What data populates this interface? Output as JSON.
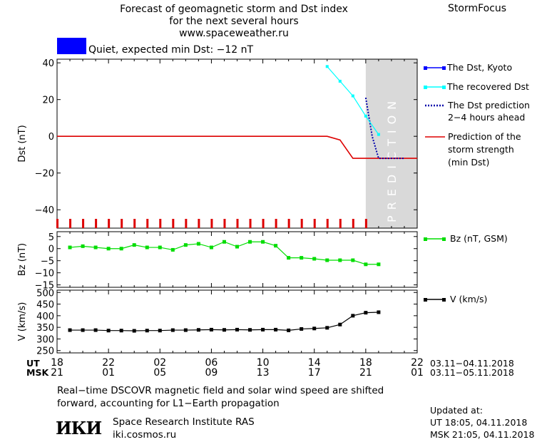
{
  "header": {
    "title_lines": [
      "Forecast of geomagnetic storm and Dst index",
      "for the next several hours",
      "www.spaceweather.ru"
    ],
    "brand": "StormFocus",
    "status_text": "Quiet, expected min Dst: −12 nT",
    "status_color": "#0000ff"
  },
  "legend": {
    "dst_kyoto": "The Dst, Kyoto",
    "recovered_dst": "The recovered Dst",
    "dst_prediction": [
      "The Dst prediction",
      "2−4 hours ahead"
    ],
    "storm_strength": [
      "Prediction of the",
      "storm strength",
      "(min Dst)"
    ],
    "bz": "Bz (nT, GSM)",
    "v": "V (km/s)"
  },
  "time_axis": {
    "ut_label": "UT",
    "msk_label": "MSK",
    "ut_ticks": [
      "18",
      "22",
      "02",
      "06",
      "10",
      "14",
      "18",
      "22"
    ],
    "msk_ticks": [
      "21",
      "01",
      "05",
      "09",
      "13",
      "17",
      "21",
      "01"
    ],
    "ut_range": "03.11−04.11.2018",
    "msk_range": "03.11−05.11.2018"
  },
  "footer": {
    "note_lines": [
      "Real−time DSCOVR magnetic field and solar wind speed are shifted",
      "forward, accounting for L1−Earth propagation"
    ],
    "logo": "ИКИ",
    "institute": "Space Research Institute RAS",
    "site": "iki.cosmos.ru",
    "updated_label": "Updated at:",
    "updated_ut": "UT   18:05, 04.11.2018",
    "updated_msk": "MSK 21:05, 04.11.2018"
  },
  "colors": {
    "kyoto": "#0000ff",
    "recovered": "#00ffff",
    "prediction": "#0000aa",
    "storm": "#dd0000",
    "bz": "#00dd00",
    "v": "#000000",
    "prediction_zone": "#d9d9d9"
  },
  "chart_data": [
    {
      "type": "line",
      "title": "",
      "xlabel": "",
      "ylabel": "Dst (nT)",
      "x_unit": "hours since 18 UT, 03.11.2018",
      "xlim": [
        0,
        28
      ],
      "ylim": [
        -50,
        42
      ],
      "yticks": [
        40,
        20,
        0,
        -20,
        -40
      ],
      "prediction_zone": {
        "from": 24,
        "to": 28,
        "label": "PREDICTION"
      },
      "series": [
        {
          "name": "The Dst, Kyoto",
          "x": [],
          "y": []
        },
        {
          "name": "The recovered Dst",
          "x": [
            21,
            22,
            23,
            24,
            25
          ],
          "y": [
            38,
            30,
            22,
            11,
            1
          ]
        },
        {
          "name": "The Dst prediction 2−4 hours ahead",
          "x": [
            24,
            24.5,
            25,
            26,
            27
          ],
          "y": [
            21,
            0,
            -12,
            -12,
            -12
          ]
        },
        {
          "name": "Prediction of the storm strength (min Dst)",
          "x": [
            0,
            21,
            22,
            23,
            28
          ],
          "y": [
            0,
            0,
            -2,
            -12,
            -12
          ]
        }
      ],
      "red_tick_marks_x": [
        0,
        1,
        2,
        3,
        4,
        5,
        6,
        7,
        8,
        9,
        10,
        11,
        12,
        13,
        14,
        15,
        16,
        17,
        18,
        19,
        20,
        21,
        22,
        23,
        24
      ]
    },
    {
      "type": "line",
      "ylabel": "Bz (nT)",
      "xlim": [
        0,
        28
      ],
      "ylim": [
        -16,
        7
      ],
      "yticks": [
        5,
        0,
        -5,
        -10,
        -15
      ],
      "series": [
        {
          "name": "Bz (nT, GSM)",
          "x": [
            1,
            2,
            3,
            4,
            5,
            6,
            7,
            8,
            9,
            10,
            11,
            12,
            13,
            14,
            15,
            16,
            17,
            18,
            19,
            20,
            21,
            22,
            23,
            24,
            25
          ],
          "y": [
            0.5,
            1,
            0.5,
            0,
            0,
            1.5,
            0.5,
            0.5,
            -0.5,
            1.5,
            2,
            0.5,
            2.8,
            0.8,
            2.8,
            2.8,
            1.2,
            -3.8,
            -3.8,
            -4.2,
            -4.8,
            -4.8,
            -4.8,
            -6.5,
            -6.5
          ]
        }
      ]
    },
    {
      "type": "line",
      "ylabel": "V (km/s)",
      "xlim": [
        0,
        28
      ],
      "ylim": [
        240,
        510
      ],
      "yticks": [
        500,
        450,
        400,
        350,
        300,
        250
      ],
      "series": [
        {
          "name": "V (km/s)",
          "x": [
            1,
            2,
            3,
            4,
            5,
            6,
            7,
            8,
            9,
            10,
            11,
            12,
            13,
            14,
            15,
            16,
            17,
            18,
            19,
            20,
            21,
            22,
            23,
            24,
            25
          ],
          "y": [
            338,
            338,
            338,
            336,
            336,
            335,
            336,
            336,
            338,
            338,
            339,
            340,
            339,
            340,
            339,
            340,
            340,
            337,
            343,
            345,
            348,
            362,
            400,
            413,
            415
          ]
        }
      ]
    }
  ]
}
